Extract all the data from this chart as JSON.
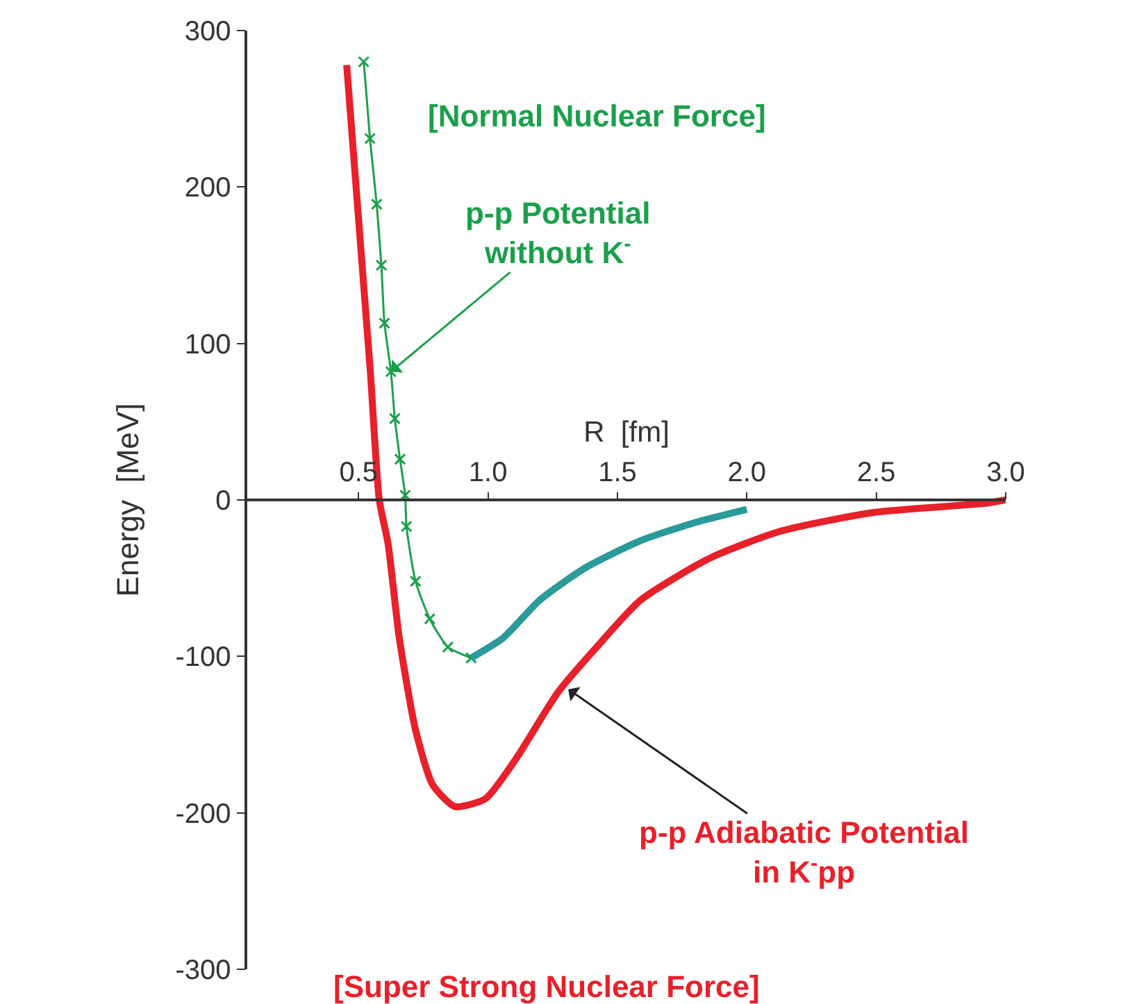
{
  "chart_data": {
    "type": "line",
    "xlabel": "R  [fm]",
    "ylabel": "Energy  [MeV]",
    "xlim": [
      0.07,
      3.0
    ],
    "ylim": [
      -300,
      300
    ],
    "xticks": [
      {
        "value": 0.5,
        "label": "0.5"
      },
      {
        "value": 1.0,
        "label": "1.0"
      },
      {
        "value": 1.5,
        "label": "1.5"
      },
      {
        "value": 2.0,
        "label": "2.0"
      },
      {
        "value": 2.5,
        "label": "2.5"
      },
      {
        "value": 3.0,
        "label": "3.0"
      }
    ],
    "yticks": [
      -300,
      -200,
      -100,
      0,
      100,
      200,
      300
    ],
    "series": [
      {
        "color": "#1aa04a",
        "marker": "cross",
        "x": [
          0.52,
          0.544,
          0.57,
          0.588,
          0.6,
          0.625,
          0.64,
          0.66,
          0.68,
          0.685,
          0.72,
          0.775,
          0.845,
          0.935
        ],
        "values": [
          280,
          231,
          189,
          150,
          113,
          82,
          52,
          26,
          3,
          -17,
          -52,
          -76,
          -94,
          -101
        ]
      },
      {
        "color": "#2a9a9a",
        "marker": "none",
        "x": [
          0.935,
          1.06,
          1.2,
          1.38,
          1.59,
          1.81,
          2.0
        ],
        "values": [
          -101,
          -88,
          -64,
          -43,
          -26,
          -14,
          -6
        ]
      },
      {
        "color": "#e8202a",
        "marker": "none",
        "x": [
          0.454,
          0.545,
          0.58,
          0.614,
          0.657,
          0.72,
          0.786,
          0.872,
          0.99,
          1.11,
          1.27,
          1.42,
          1.59,
          1.86,
          2.13,
          2.49,
          2.93,
          3.0
        ],
        "values": [
          278,
          83,
          0,
          -28,
          -88,
          -147,
          -182,
          -196,
          -191,
          -165,
          -123,
          -94,
          -64,
          -37,
          -20,
          -8,
          -2,
          0
        ]
      }
    ],
    "annotations": [
      "[Normal Nuclear Force]",
      {
        "text": "p-p Potential\nwithout K$^{-}$",
        "x": 0.625,
        "y": 82
      },
      {
        "text": "p-p Adiabatic Potential\nin K$^{-}$pp",
        "x": 1.31,
        "y": -121
      },
      "[Super Strong Nuclear Force]"
    ]
  }
}
